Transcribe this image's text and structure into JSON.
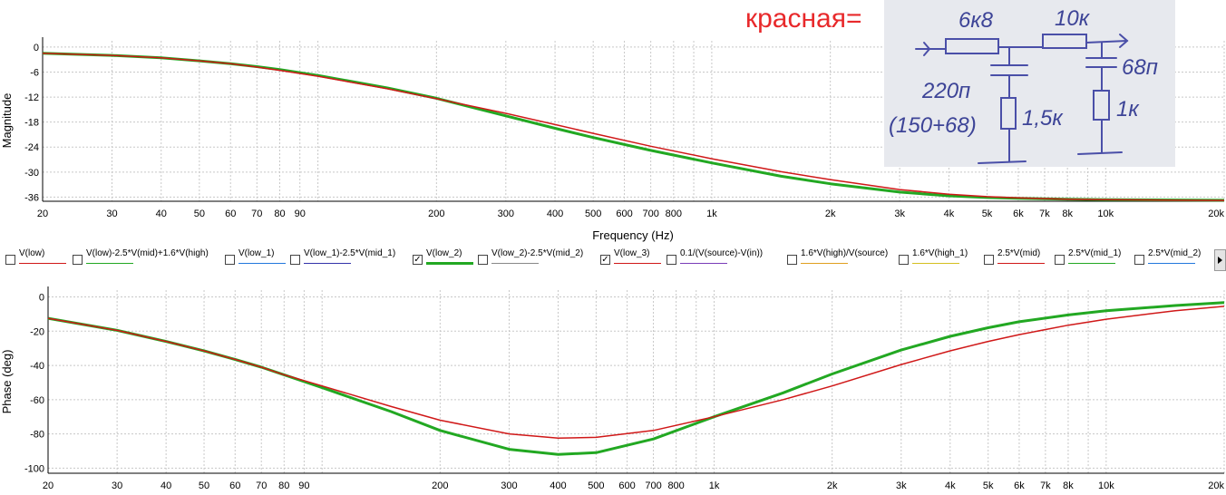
{
  "annotation": {
    "label": "красная="
  },
  "schematic": {
    "labels": [
      "6к8",
      "10к",
      "220п",
      "(150+68)",
      "1,5к",
      "68п",
      "1к"
    ]
  },
  "colors": {
    "red": "#d01818",
    "green": "#22a822",
    "grid": "#c8c8c8"
  },
  "legend": {
    "items": [
      {
        "label": "V(low)",
        "checked": false,
        "color": "#d01818",
        "bold": false
      },
      {
        "label": "V(low)-2.5*V(mid)+1.6*V(high)",
        "checked": false,
        "color": "#22a822",
        "bold": false
      },
      {
        "label": "V(low_1)",
        "checked": false,
        "color": "#2277dd",
        "bold": false
      },
      {
        "label": "V(low_1)-2.5*V(mid_1)",
        "checked": false,
        "color": "#3333aa",
        "bold": false
      },
      {
        "label": "V(low_2)",
        "checked": true,
        "color": "#22a822",
        "bold": true
      },
      {
        "label": "V(low_2)-2.5*V(mid_2)",
        "checked": false,
        "color": "#888888",
        "bold": false
      },
      {
        "label": "V(low_3)",
        "checked": true,
        "color": "#d01818",
        "bold": false
      },
      {
        "label": "0.1/(V(source)-V(in))",
        "checked": false,
        "color": "#7a3db8",
        "bold": false
      },
      {
        "label": "1.6*V(high)/V(source)",
        "checked": false,
        "color": "#e0a020",
        "bold": false
      },
      {
        "label": "1.6*V(high_1)",
        "checked": false,
        "color": "#d4c020",
        "bold": false
      },
      {
        "label": "2.5*V(mid)",
        "checked": false,
        "color": "#d01818",
        "bold": false
      },
      {
        "label": "2.5*V(mid_1)",
        "checked": false,
        "color": "#22a822",
        "bold": false
      },
      {
        "label": "2.5*V(mid_2)",
        "checked": false,
        "color": "#2277dd",
        "bold": false
      }
    ]
  },
  "chart_data": [
    {
      "type": "line",
      "title": "",
      "xlabel": "Frequency (Hz)",
      "ylabel": "Magnitude",
      "xscale": "log",
      "xlim": [
        20,
        20000
      ],
      "ylim": [
        -37,
        1.5
      ],
      "x_ticks": [
        {
          "v": 20,
          "t": "20"
        },
        {
          "v": 30,
          "t": "30"
        },
        {
          "v": 40,
          "t": "40"
        },
        {
          "v": 50,
          "t": "50"
        },
        {
          "v": 60,
          "t": "60"
        },
        {
          "v": 70,
          "t": "70"
        },
        {
          "v": 80,
          "t": "80"
        },
        {
          "v": 90,
          "t": "90"
        },
        {
          "v": 200,
          "t": "200"
        },
        {
          "v": 300,
          "t": "300"
        },
        {
          "v": 400,
          "t": "400"
        },
        {
          "v": 500,
          "t": "500"
        },
        {
          "v": 600,
          "t": "600"
        },
        {
          "v": 700,
          "t": "700"
        },
        {
          "v": 800,
          "t": "800"
        },
        {
          "v": 1000,
          "t": "1k"
        },
        {
          "v": 2000,
          "t": "2k"
        },
        {
          "v": 3000,
          "t": "3k"
        },
        {
          "v": 4000,
          "t": "4k"
        },
        {
          "v": 5000,
          "t": "5k"
        },
        {
          "v": 6000,
          "t": "6k"
        },
        {
          "v": 7000,
          "t": "7k"
        },
        {
          "v": 8000,
          "t": "8k"
        },
        {
          "v": 10000,
          "t": "10k"
        },
        {
          "v": 20000,
          "t": "20k"
        }
      ],
      "y_ticks": [
        0,
        -6,
        -12,
        -18,
        -24,
        -30,
        -36
      ],
      "grid": true,
      "series": [
        {
          "name": "V(low_2)",
          "color": "#22a822",
          "width": 3,
          "x": [
            20,
            30,
            40,
            50,
            60,
            70,
            80,
            100,
            150,
            200,
            300,
            400,
            500,
            700,
            1000,
            1500,
            2000,
            3000,
            4000,
            5000,
            6000,
            8000,
            10000,
            15000,
            20000
          ],
          "y": [
            -1.5,
            -2.0,
            -2.6,
            -3.3,
            -4.0,
            -4.7,
            -5.4,
            -6.8,
            -9.8,
            -12.3,
            -16.5,
            -19.5,
            -21.7,
            -24.8,
            -27.8,
            -31.0,
            -32.8,
            -34.8,
            -35.7,
            -36.1,
            -36.3,
            -36.5,
            -36.6,
            -36.7,
            -36.75
          ]
        },
        {
          "name": "V(low_3)",
          "color": "#d01818",
          "width": 1.5,
          "x": [
            20,
            30,
            40,
            50,
            60,
            70,
            80,
            100,
            150,
            200,
            300,
            400,
            500,
            700,
            1000,
            1500,
            2000,
            3000,
            4000,
            5000,
            6000,
            8000,
            10000,
            15000,
            20000
          ],
          "y": [
            -1.5,
            -2.0,
            -2.6,
            -3.3,
            -4.0,
            -4.8,
            -5.6,
            -7.0,
            -10.0,
            -12.4,
            -15.9,
            -18.6,
            -20.7,
            -23.8,
            -26.8,
            -29.9,
            -31.8,
            -34.2,
            -35.3,
            -35.9,
            -36.2,
            -36.5,
            -36.6,
            -36.75,
            -36.8
          ]
        }
      ]
    },
    {
      "type": "line",
      "title": "",
      "xlabel": "",
      "ylabel": "Phase (deg)",
      "xscale": "log",
      "xlim": [
        20,
        20000
      ],
      "ylim": [
        -103,
        4
      ],
      "x_ticks": [
        {
          "v": 20,
          "t": "20"
        },
        {
          "v": 30,
          "t": "30"
        },
        {
          "v": 40,
          "t": "40"
        },
        {
          "v": 50,
          "t": "50"
        },
        {
          "v": 60,
          "t": "60"
        },
        {
          "v": 70,
          "t": "70"
        },
        {
          "v": 80,
          "t": "80"
        },
        {
          "v": 90,
          "t": "90"
        },
        {
          "v": 200,
          "t": "200"
        },
        {
          "v": 300,
          "t": "300"
        },
        {
          "v": 400,
          "t": "400"
        },
        {
          "v": 500,
          "t": "500"
        },
        {
          "v": 600,
          "t": "600"
        },
        {
          "v": 700,
          "t": "700"
        },
        {
          "v": 800,
          "t": "800"
        },
        {
          "v": 1000,
          "t": "1k"
        },
        {
          "v": 2000,
          "t": "2k"
        },
        {
          "v": 3000,
          "t": "3k"
        },
        {
          "v": 4000,
          "t": "4k"
        },
        {
          "v": 5000,
          "t": "5k"
        },
        {
          "v": 6000,
          "t": "6k"
        },
        {
          "v": 7000,
          "t": "7k"
        },
        {
          "v": 8000,
          "t": "8k"
        },
        {
          "v": 10000,
          "t": "10k"
        },
        {
          "v": 20000,
          "t": "20k"
        }
      ],
      "y_ticks": [
        0,
        -20,
        -40,
        -60,
        -80,
        -100
      ],
      "grid": true,
      "series": [
        {
          "name": "V(low_2)",
          "color": "#22a822",
          "width": 3,
          "x": [
            20,
            30,
            40,
            50,
            60,
            70,
            80,
            100,
            150,
            200,
            300,
            400,
            500,
            700,
            1000,
            1500,
            2000,
            3000,
            4000,
            5000,
            6000,
            8000,
            10000,
            15000,
            20000
          ],
          "y": [
            -12.5,
            -19.5,
            -26,
            -31.5,
            -36.5,
            -41,
            -45.5,
            -53,
            -67,
            -78,
            -89,
            -92,
            -91,
            -83,
            -70,
            -56,
            -45,
            -31,
            -23,
            -18,
            -14.5,
            -10.5,
            -8,
            -5,
            -3.3
          ]
        },
        {
          "name": "V(low_3)",
          "color": "#d01818",
          "width": 1.5,
          "x": [
            20,
            30,
            40,
            50,
            60,
            70,
            80,
            100,
            150,
            200,
            300,
            400,
            500,
            700,
            1000,
            1500,
            2000,
            3000,
            4000,
            5000,
            6000,
            8000,
            10000,
            15000,
            20000
          ],
          "y": [
            -12.5,
            -19.5,
            -26,
            -31.5,
            -36.5,
            -41,
            -45.5,
            -52,
            -64,
            -72,
            -80,
            -82.5,
            -82,
            -78,
            -70,
            -60,
            -52,
            -39.5,
            -31.5,
            -26,
            -22,
            -16.5,
            -13,
            -8,
            -5.5
          ]
        }
      ]
    }
  ]
}
